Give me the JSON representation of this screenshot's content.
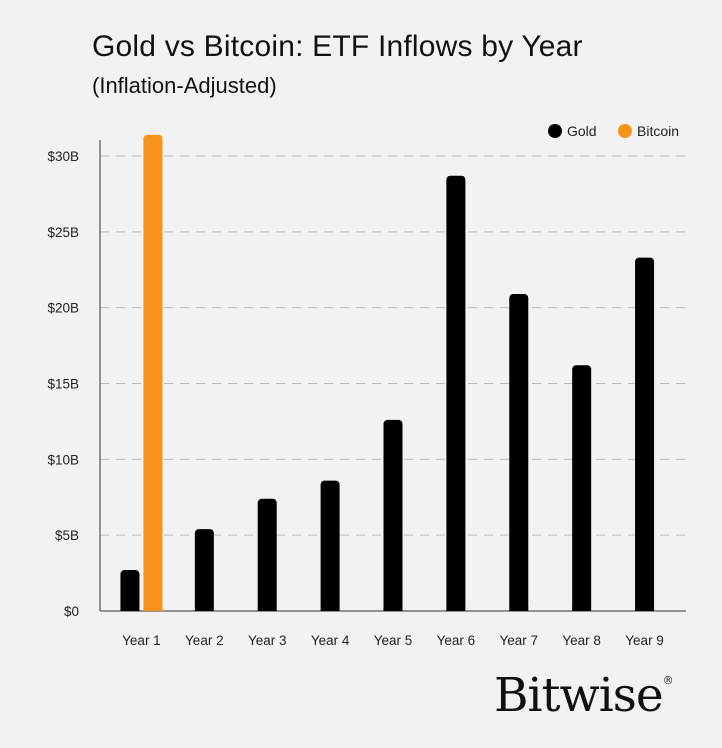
{
  "title": "Gold vs Bitcoin: ETF Inflows by Year",
  "subtitle": "(Inflation-Adjusted)",
  "logo": "Bitwise",
  "colors": {
    "gold": "#000000",
    "bitcoin": "#f7931a",
    "grid": "#bbbbbb"
  },
  "chart_data": {
    "type": "bar",
    "title": "Gold vs Bitcoin: ETF Inflows by Year",
    "subtitle": "(Inflation-Adjusted)",
    "categories": [
      "Year 1",
      "Year 2",
      "Year 3",
      "Year 4",
      "Year 5",
      "Year 6",
      "Year 7",
      "Year 8",
      "Year 9"
    ],
    "series": [
      {
        "name": "Gold",
        "color": "#000000",
        "values": [
          2.7,
          5.4,
          7.4,
          8.6,
          12.6,
          28.7,
          20.9,
          16.2,
          23.3
        ]
      },
      {
        "name": "Bitcoin",
        "color": "#f7931a",
        "values": [
          31.4,
          null,
          null,
          null,
          null,
          null,
          null,
          null,
          null
        ]
      }
    ],
    "ylim": [
      0,
      30
    ],
    "yticks": [
      0,
      5,
      10,
      15,
      20,
      25,
      30
    ],
    "ytick_labels": [
      "$0",
      "$5B",
      "$10B",
      "$15B",
      "$20B",
      "$25B",
      "$30B"
    ],
    "xlabel": "",
    "ylabel": "",
    "grid": "horizontal-dashed",
    "legend": "top-right"
  }
}
